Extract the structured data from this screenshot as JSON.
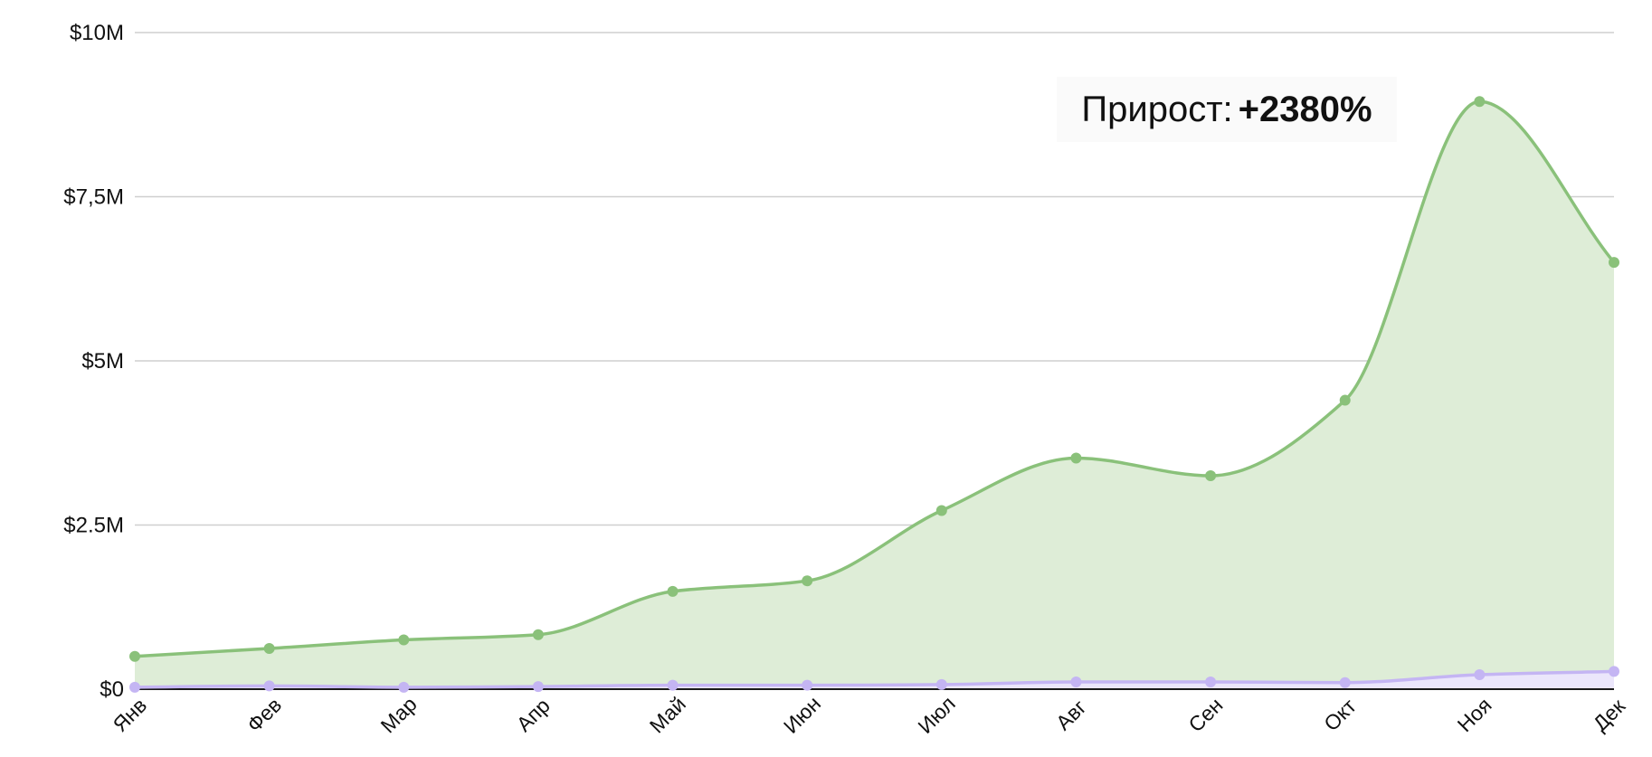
{
  "chart_data": {
    "type": "area",
    "categories": [
      "Янв",
      "Фев",
      "Мар",
      "Апр",
      "Май",
      "Июн",
      "Июл",
      "Авг",
      "Сен",
      "Окт",
      "Ноя",
      "Дек"
    ],
    "series": [
      {
        "values": [
          0.5,
          0.62,
          0.75,
          0.83,
          1.49,
          1.65,
          2.72,
          3.52,
          3.25,
          4.4,
          8.95,
          6.5
        ],
        "color": "#8ac17a",
        "fill": "#deedd7"
      },
      {
        "values": [
          0.03,
          0.05,
          0.03,
          0.04,
          0.06,
          0.06,
          0.07,
          0.11,
          0.11,
          0.1,
          0.22,
          0.27
        ],
        "color": "#c4b5f3",
        "fill": "#ebe6fb"
      }
    ],
    "y_ticks": [
      {
        "value": 0,
        "label": "$0"
      },
      {
        "value": 2.5,
        "label": "$2.5M"
      },
      {
        "value": 5,
        "label": "$5M"
      },
      {
        "value": 7.5,
        "label": "$7,5M"
      },
      {
        "value": 10,
        "label": "$10M"
      }
    ],
    "ylim": [
      0,
      10
    ],
    "unit": "$M",
    "grid": true,
    "annotation": {
      "label": "Прирост:",
      "value": "+2380%"
    }
  }
}
